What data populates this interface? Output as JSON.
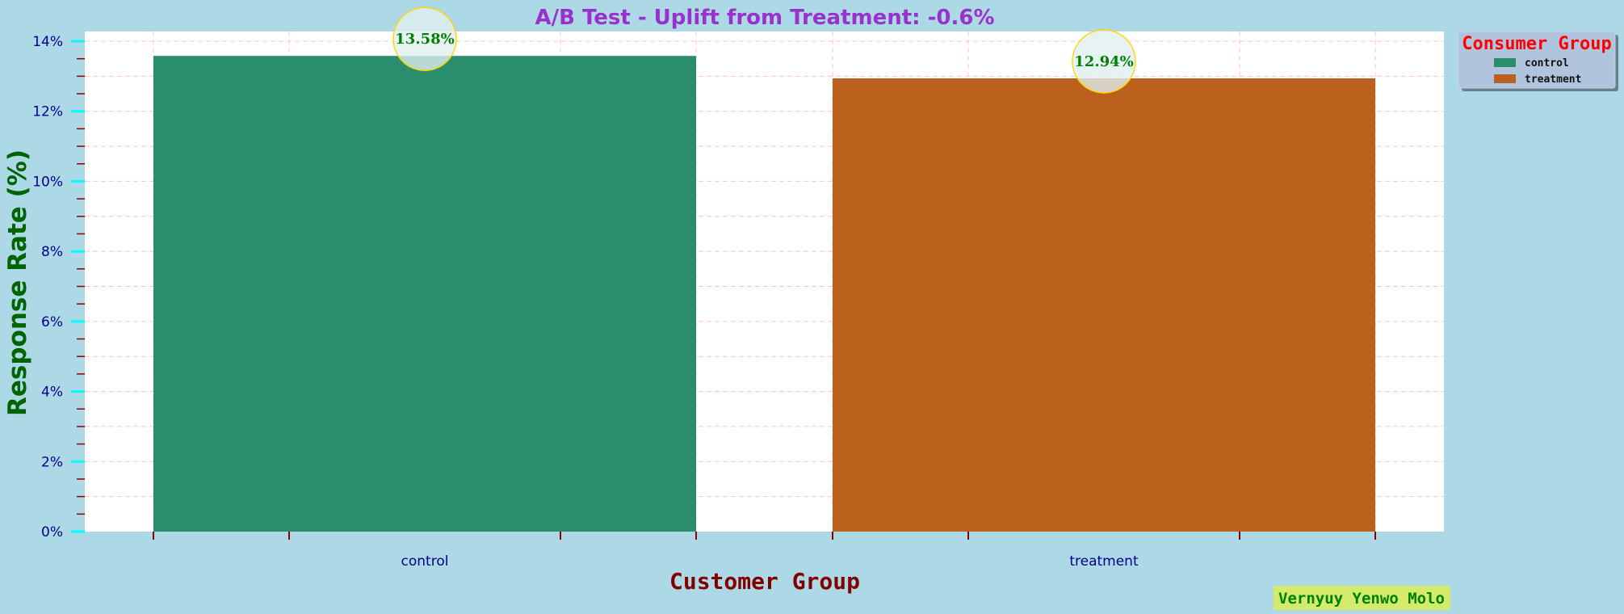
{
  "colors": {
    "page_bg": "#add8e6",
    "plot_bg": "#ffffff",
    "grid": "#ffc0cb",
    "title": "#9932cc",
    "ylabel": "#006400",
    "xlabel": "#800000",
    "tick_label": "#00008b",
    "major_tick": "#00ffff",
    "minor_tick": "#8b0000",
    "data_label": "#008000",
    "label_circle_fill": "#e0f0f0",
    "label_circle_edge": "#ffd700",
    "legend_bg": "#b0c4de",
    "legend_title": "#ff0000",
    "watermark_bg": "#d4ea6b",
    "watermark_text": "#008000"
  },
  "chart_data": {
    "type": "bar",
    "title": "A/B Test - Uplift from Treatment: -0.6%",
    "xlabel": "Customer Group",
    "ylabel": "Response Rate (%)",
    "categories": [
      "control",
      "treatment"
    ],
    "values": [
      13.58,
      12.94
    ],
    "data_labels": [
      "13.58%",
      "12.94%"
    ],
    "bar_colors": [
      "#2a8e6e",
      "#bc611d"
    ],
    "ylim": [
      0,
      14
    ],
    "yticks": [
      0,
      2,
      4,
      6,
      8,
      10,
      12,
      14
    ],
    "ytick_labels": [
      "0%",
      "2%",
      "4%",
      "6%",
      "8%",
      "10%",
      "12%",
      "14%"
    ],
    "grid": true,
    "legend": {
      "title": "Consumer Group",
      "placement": "outside-top-right",
      "entries": [
        {
          "label": "control",
          "color": "#2a8e6e"
        },
        {
          "label": "treatment",
          "color": "#bc611d"
        }
      ]
    }
  },
  "watermark": "Vernyuy Yenwo Molo"
}
